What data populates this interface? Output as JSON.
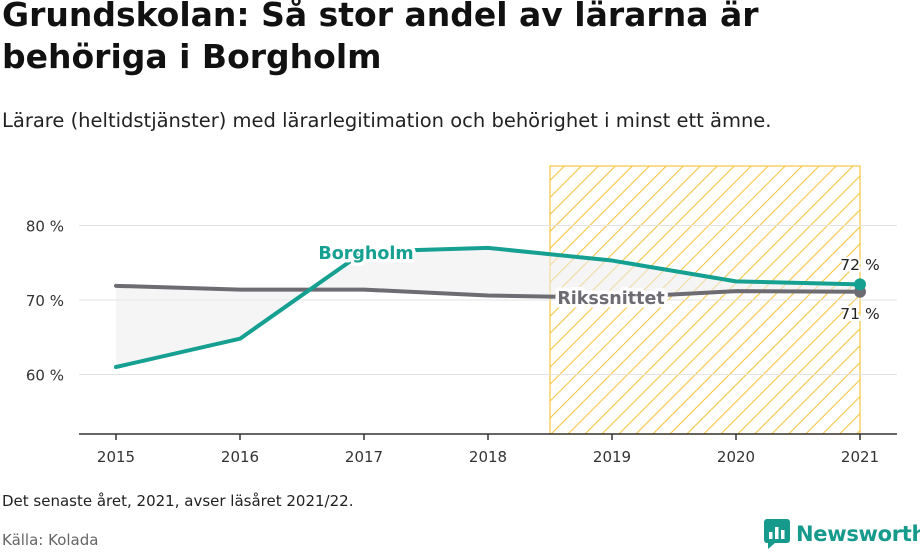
{
  "header": {
    "title": "Grundskolan: Så stor andel av lärarna är behöriga i Borgholm",
    "subtitle": "Lärare (heltidstjänster) med lärarlegitimation och behörighet i minst ett ämne."
  },
  "footer": {
    "note": "Det senaste året, 2021, avser läsåret 2021/22.",
    "source": "Källa: Kolada",
    "brand": "Newsworthy"
  },
  "colors": {
    "borgholm": "#15a092",
    "riks": "#6e6c73",
    "highlight": "#f6c544",
    "axis": "#333333"
  },
  "chart_data": {
    "type": "line",
    "x": [
      "2015",
      "2016",
      "2017",
      "2018",
      "2019",
      "2020",
      "2021"
    ],
    "y_ticks": [
      "60 %",
      "70 %",
      "80 %"
    ],
    "ylim": [
      52,
      88
    ],
    "grid": "horizontal",
    "highlight_range": [
      "2018.5",
      "2021"
    ],
    "series": [
      {
        "name": "Borgholm",
        "values": [
          61.0,
          64.8,
          76.5,
          77.0,
          75.3,
          72.5,
          72.1
        ],
        "end_label": "72 %"
      },
      {
        "name": "Rikssnittet",
        "values": [
          71.9,
          71.4,
          71.4,
          70.6,
          70.3,
          71.2,
          71.1
        ],
        "end_label": "71 %"
      }
    ]
  }
}
